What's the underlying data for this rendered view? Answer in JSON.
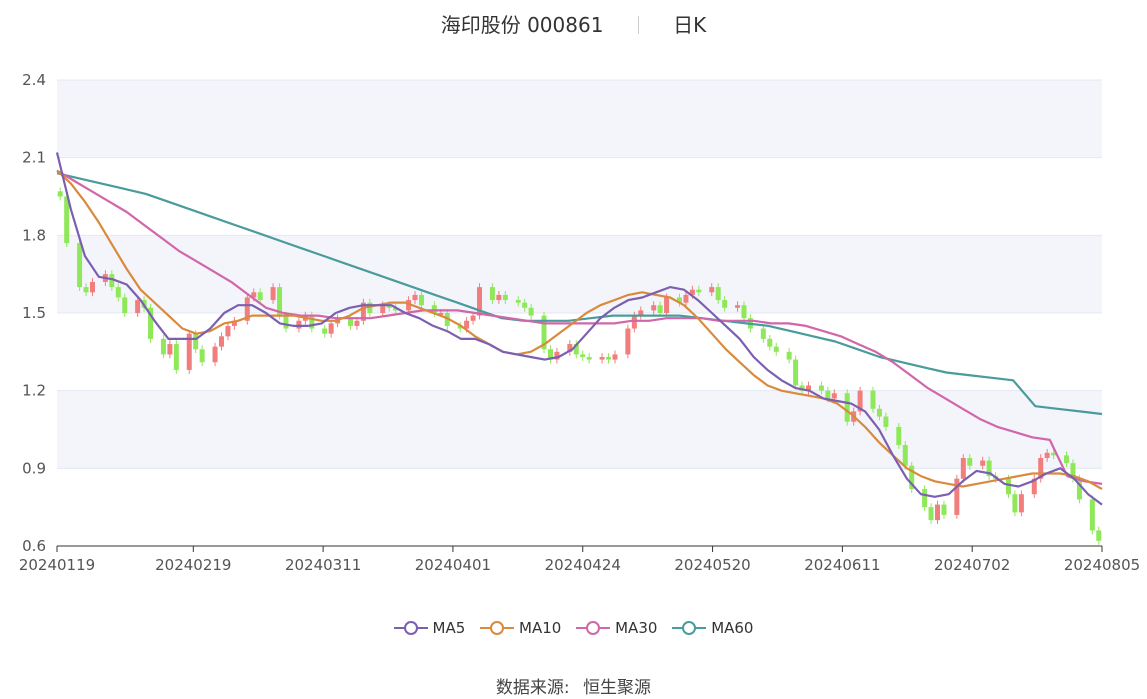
{
  "header": {
    "stock_name": "海印股份 000861",
    "period": "日K"
  },
  "source": {
    "label": "数据来源:",
    "provider": "恒生聚源"
  },
  "chart_data": {
    "type": "candlestick",
    "title": "海印股份 000861",
    "ylim": [
      0.6,
      2.4
    ],
    "yticks": [
      0.6,
      0.9,
      1.2,
      1.5,
      1.8,
      2.1,
      2.4
    ],
    "x_axis_labels": [
      "20240119",
      "20240219",
      "20240311",
      "20240401",
      "20240424",
      "20240520",
      "20240611",
      "20240702",
      "20240805"
    ],
    "x_axis_label_index": [
      0,
      21,
      41,
      61,
      81,
      101,
      121,
      141,
      161
    ],
    "grid": true,
    "legend_position": "bottom",
    "colors": {
      "up": "#f27d7d",
      "down": "#8ee85a",
      "ma5": "#7b5fb0",
      "ma10": "#d98a3d",
      "ma30": "#d166aa",
      "ma60": "#4a9b9b",
      "band": "#f3f5fb",
      "grid": "#e3e8f3"
    },
    "close": [
      1.95,
      1.77,
      1.6,
      1.58,
      1.62,
      1.65,
      1.6,
      1.56,
      1.5,
      1.55,
      1.52,
      1.4,
      1.34,
      1.38,
      1.28,
      1.42,
      1.36,
      1.31,
      1.37,
      1.41,
      1.45,
      1.47,
      1.56,
      1.58,
      1.55,
      1.6,
      1.49,
      1.44,
      1.47,
      1.49,
      1.44,
      1.42,
      1.46,
      1.48,
      1.45,
      1.47,
      1.54,
      1.5,
      1.53,
      1.52,
      1.51,
      1.55,
      1.57,
      1.53,
      1.5,
      1.5,
      1.45,
      1.44,
      1.47,
      1.49,
      1.6,
      1.55,
      1.57,
      1.55,
      1.54,
      1.52,
      1.49,
      1.36,
      1.32,
      1.35,
      1.38,
      1.34,
      1.33,
      1.32,
      1.33,
      1.32,
      1.34,
      1.44,
      1.49,
      1.51,
      1.53,
      1.5,
      1.56,
      1.54,
      1.57,
      1.59,
      1.58,
      1.6,
      1.55,
      1.52,
      1.53,
      1.48,
      1.44,
      1.4,
      1.37,
      1.35,
      1.32,
      1.22,
      1.2,
      1.22,
      1.2,
      1.17,
      1.19,
      1.08,
      1.12,
      1.2,
      1.13,
      1.1,
      1.06,
      0.99,
      0.91,
      0.82,
      0.75,
      0.7,
      0.76,
      0.72,
      0.86,
      0.94,
      0.91,
      0.93,
      0.87,
      0.86,
      0.8,
      0.73,
      0.8,
      0.86,
      0.94,
      0.96,
      0.95,
      0.92,
      0.86,
      0.78,
      0.66,
      0.62
    ],
    "ma5": [
      2.12,
      1.9,
      1.72,
      1.64,
      1.63,
      1.61,
      1.55,
      1.47,
      1.4,
      1.4,
      1.4,
      1.44,
      1.5,
      1.53,
      1.53,
      1.5,
      1.46,
      1.45,
      1.45,
      1.46,
      1.5,
      1.52,
      1.53,
      1.53,
      1.53,
      1.5,
      1.48,
      1.45,
      1.43,
      1.4,
      1.4,
      1.38,
      1.35,
      1.34,
      1.33,
      1.32,
      1.33,
      1.36,
      1.42,
      1.48,
      1.52,
      1.55,
      1.56,
      1.58,
      1.6,
      1.59,
      1.55,
      1.5,
      1.45,
      1.4,
      1.33,
      1.28,
      1.24,
      1.21,
      1.2,
      1.17,
      1.16,
      1.15,
      1.12,
      1.05,
      0.95,
      0.86,
      0.8,
      0.79,
      0.8,
      0.85,
      0.89,
      0.88,
      0.84,
      0.83,
      0.85,
      0.88,
      0.9,
      0.86,
      0.8,
      0.76
    ],
    "ma10": [
      2.05,
      2.0,
      1.93,
      1.85,
      1.76,
      1.67,
      1.59,
      1.54,
      1.49,
      1.44,
      1.42,
      1.43,
      1.46,
      1.47,
      1.49,
      1.49,
      1.49,
      1.49,
      1.48,
      1.47,
      1.47,
      1.49,
      1.52,
      1.53,
      1.54,
      1.54,
      1.52,
      1.5,
      1.48,
      1.45,
      1.41,
      1.38,
      1.35,
      1.34,
      1.35,
      1.38,
      1.42,
      1.46,
      1.5,
      1.53,
      1.55,
      1.57,
      1.58,
      1.57,
      1.56,
      1.53,
      1.48,
      1.42,
      1.36,
      1.31,
      1.26,
      1.22,
      1.2,
      1.19,
      1.18,
      1.17,
      1.15,
      1.11,
      1.06,
      1.0,
      0.95,
      0.9,
      0.87,
      0.85,
      0.84,
      0.83,
      0.84,
      0.85,
      0.86,
      0.87,
      0.88,
      0.88,
      0.88,
      0.87,
      0.85,
      0.82
    ],
    "ma30": [
      2.05,
      2.01,
      1.97,
      1.93,
      1.89,
      1.84,
      1.79,
      1.74,
      1.7,
      1.66,
      1.62,
      1.57,
      1.52,
      1.5,
      1.49,
      1.49,
      1.48,
      1.48,
      1.48,
      1.49,
      1.5,
      1.51,
      1.51,
      1.51,
      1.5,
      1.49,
      1.48,
      1.47,
      1.46,
      1.46,
      1.46,
      1.46,
      1.46,
      1.47,
      1.47,
      1.48,
      1.48,
      1.48,
      1.47,
      1.47,
      1.47,
      1.46,
      1.46,
      1.45,
      1.43,
      1.41,
      1.38,
      1.35,
      1.31,
      1.26,
      1.21,
      1.17,
      1.13,
      1.09,
      1.06,
      1.04,
      1.02,
      1.01,
      0.87,
      0.85,
      0.84
    ],
    "ma60": [
      2.04,
      2.02,
      2.0,
      1.98,
      1.96,
      1.93,
      1.9,
      1.87,
      1.84,
      1.81,
      1.78,
      1.75,
      1.72,
      1.69,
      1.66,
      1.63,
      1.6,
      1.57,
      1.54,
      1.51,
      1.48,
      1.47,
      1.47,
      1.47,
      1.48,
      1.49,
      1.49,
      1.49,
      1.49,
      1.48,
      1.47,
      1.46,
      1.45,
      1.43,
      1.41,
      1.39,
      1.36,
      1.33,
      1.31,
      1.29,
      1.27,
      1.26,
      1.25,
      1.24,
      1.14,
      1.13,
      1.12,
      1.11
    ],
    "legend": [
      "MA5",
      "MA10",
      "MA30",
      "MA60"
    ]
  }
}
